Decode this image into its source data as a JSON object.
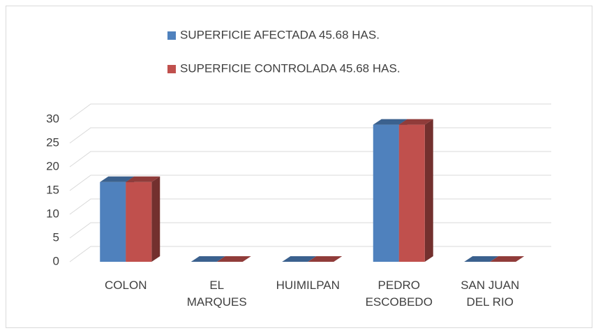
{
  "chart_data": {
    "type": "bar3d",
    "categories": [
      "COLON",
      "EL MARQUES",
      "HUIMILPAN",
      "PEDRO ESCOBEDO",
      "SAN JUAN DEL RIO"
    ],
    "series": [
      {
        "name": "SUPERFICIE AFECTADA  45.68  HAS.",
        "color": "#4f81bd",
        "values": [
          16.8,
          0,
          0,
          28.88,
          0
        ]
      },
      {
        "name": "SUPERFICIE CONTROLADA  45.68  HAS.",
        "color": "#c0504d",
        "values": [
          16.8,
          0,
          0,
          28.88,
          0
        ]
      }
    ],
    "ylim": [
      0,
      30
    ],
    "yticks": [
      0,
      5,
      10,
      15,
      20,
      25,
      30
    ],
    "grid": true,
    "legend": "top"
  }
}
